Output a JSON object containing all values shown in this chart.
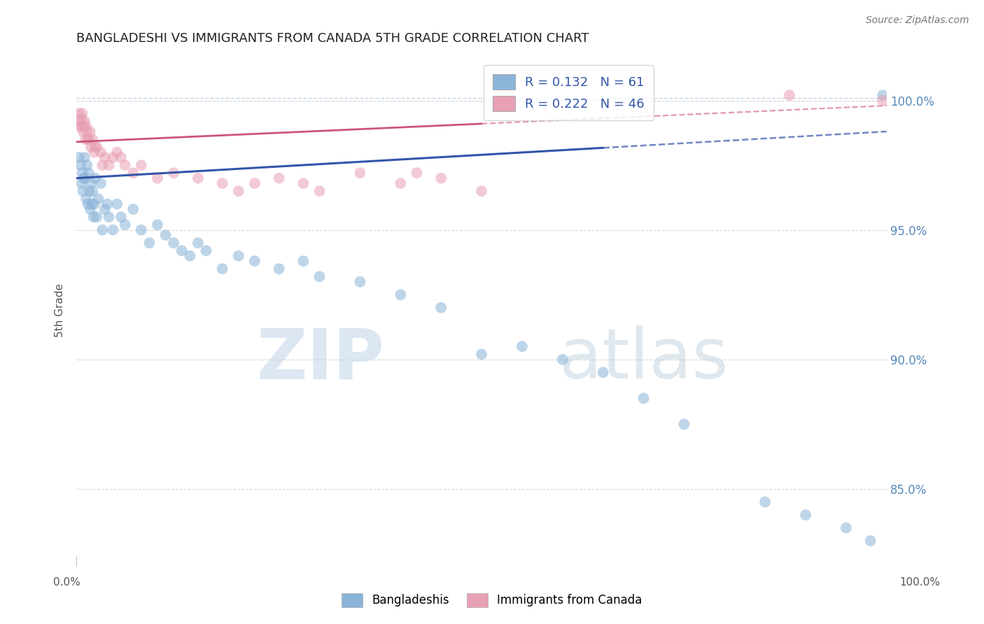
{
  "title": "BANGLADESHI VS IMMIGRANTS FROM CANADA 5TH GRADE CORRELATION CHART",
  "source_text": "Source: ZipAtlas.com",
  "ylabel": "5th Grade",
  "xmin": 0.0,
  "xmax": 100.0,
  "ymin": 82.0,
  "ymax": 101.8,
  "yticks": [
    85.0,
    90.0,
    95.0,
    100.0
  ],
  "ytick_labels": [
    "85.0%",
    "90.0%",
    "95.0%",
    "100.0%"
  ],
  "legend_blue_R": 0.132,
  "legend_blue_N": 61,
  "legend_pink_R": 0.222,
  "legend_pink_N": 46,
  "blue_color": "#8ab4d8",
  "pink_color": "#e8a0b4",
  "blue_line_color": "#3355aa",
  "pink_line_color": "#cc5577",
  "background_color": "#ffffff",
  "grid_color": "#cccccc",
  "blue_scatter_x": [
    0.3,
    0.5,
    0.6,
    0.7,
    0.8,
    0.9,
    1.0,
    1.1,
    1.2,
    1.3,
    1.4,
    1.5,
    1.6,
    1.7,
    1.8,
    1.9,
    2.0,
    2.1,
    2.2,
    2.3,
    2.5,
    2.7,
    3.0,
    3.2,
    3.5,
    3.8,
    4.0,
    4.5,
    5.0,
    5.5,
    6.0,
    7.0,
    8.0,
    9.0,
    10.0,
    11.0,
    12.0,
    13.0,
    14.0,
    15.0,
    16.0,
    18.0,
    20.0,
    22.0,
    25.0,
    28.0,
    30.0,
    35.0,
    40.0,
    45.0,
    50.0,
    55.0,
    60.0,
    65.0,
    70.0,
    75.0,
    85.0,
    90.0,
    95.0,
    98.0,
    99.5
  ],
  "blue_scatter_y": [
    97.8,
    97.5,
    96.8,
    97.2,
    96.5,
    97.0,
    97.8,
    97.0,
    96.2,
    97.5,
    96.0,
    97.2,
    96.5,
    95.8,
    96.8,
    96.0,
    96.5,
    95.5,
    96.0,
    97.0,
    95.5,
    96.2,
    96.8,
    95.0,
    95.8,
    96.0,
    95.5,
    95.0,
    96.0,
    95.5,
    95.2,
    95.8,
    95.0,
    94.5,
    95.2,
    94.8,
    94.5,
    94.2,
    94.0,
    94.5,
    94.2,
    93.5,
    94.0,
    93.8,
    93.5,
    93.8,
    93.2,
    93.0,
    92.5,
    92.0,
    90.2,
    90.5,
    90.0,
    89.5,
    88.5,
    87.5,
    84.5,
    84.0,
    83.5,
    83.0,
    100.2
  ],
  "pink_scatter_x": [
    0.3,
    0.4,
    0.5,
    0.6,
    0.7,
    0.8,
    0.9,
    1.0,
    1.1,
    1.2,
    1.3,
    1.5,
    1.7,
    1.8,
    2.0,
    2.2,
    2.5,
    3.0,
    3.5,
    4.0,
    4.5,
    5.0,
    6.0,
    7.0,
    8.0,
    10.0,
    12.0,
    15.0,
    18.0,
    20.0,
    22.0,
    25.0,
    30.0,
    35.0,
    40.0,
    45.0,
    50.0,
    88.0,
    99.5,
    0.6,
    1.4,
    2.3,
    3.2,
    5.5,
    28.0,
    42.0
  ],
  "pink_scatter_y": [
    99.5,
    99.2,
    99.0,
    99.3,
    99.5,
    98.8,
    99.0,
    99.2,
    98.5,
    99.0,
    98.8,
    98.5,
    98.8,
    98.2,
    98.5,
    98.0,
    98.2,
    98.0,
    97.8,
    97.5,
    97.8,
    98.0,
    97.5,
    97.2,
    97.5,
    97.0,
    97.2,
    97.0,
    96.8,
    96.5,
    96.8,
    97.0,
    96.5,
    97.2,
    96.8,
    97.0,
    96.5,
    100.2,
    100.0,
    99.0,
    98.5,
    98.2,
    97.5,
    97.8,
    96.8,
    97.2
  ],
  "blue_line_x0": 0.0,
  "blue_line_y0": 97.0,
  "blue_line_x1": 100.0,
  "blue_line_y1": 98.8,
  "blue_solid_end": 65.0,
  "pink_line_x0": 0.0,
  "pink_line_y0": 98.4,
  "pink_line_x1": 100.0,
  "pink_line_y1": 99.8,
  "pink_solid_end": 50.0,
  "dashed_y": 100.1,
  "watermark_zip_color": "#c5d8ea",
  "watermark_atlas_color": "#b8cedc"
}
